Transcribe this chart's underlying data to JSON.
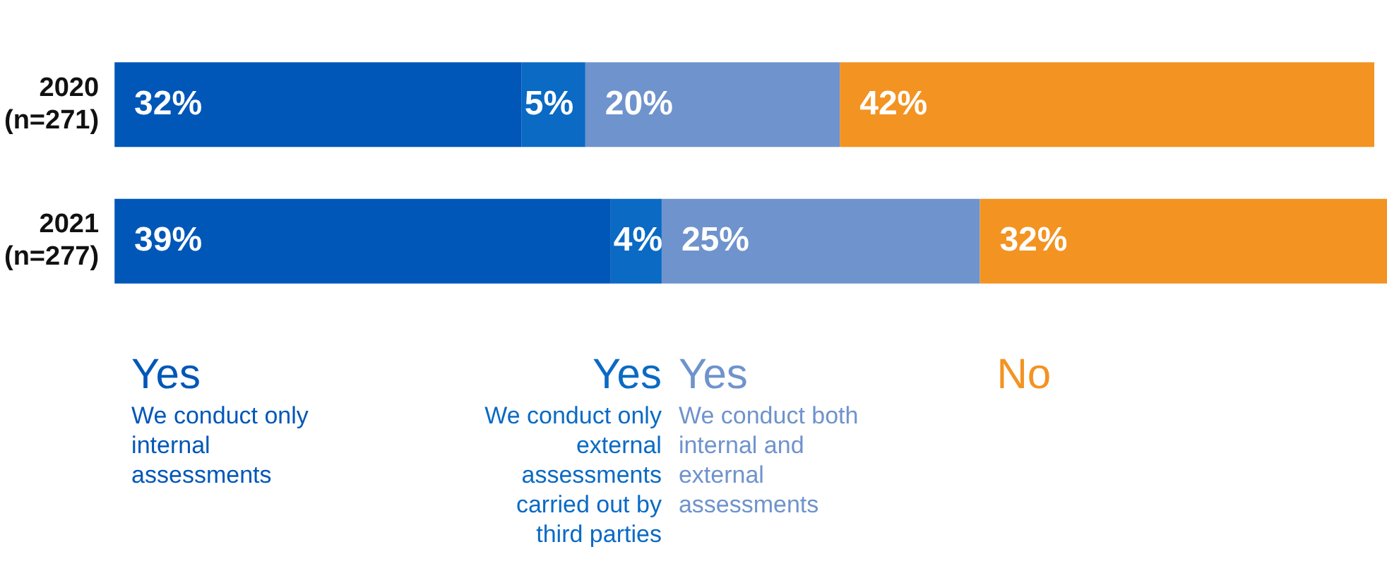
{
  "chart_data": {
    "type": "bar",
    "orientation": "horizontal",
    "stacked": true,
    "categories": [
      "2020\n(n=271)",
      "2021\n(n=277)"
    ],
    "series": [
      {
        "name": "Yes",
        "color": "#0057b8",
        "values": [
          32,
          39
        ],
        "value_labels": [
          "32%",
          "39%"
        ]
      },
      {
        "name": "Yes",
        "color": "#0a6ac4",
        "values": [
          5,
          4
        ],
        "value_labels": [
          "5%",
          "4%"
        ]
      },
      {
        "name": "Yes",
        "color": "#6f93cc",
        "values": [
          20,
          25
        ],
        "value_labels": [
          "20%",
          "25%"
        ]
      },
      {
        "name": "No",
        "color": "#f39322",
        "values": [
          42,
          32
        ],
        "value_labels": [
          "42%",
          "32%"
        ]
      }
    ],
    "annotations": [
      "We conduct only internal assessments",
      "We conduct only external assessments carried out by third parties",
      "We conduct both internal and external assessments"
    ],
    "tick_labels": "y",
    "legend": "bottom"
  }
}
